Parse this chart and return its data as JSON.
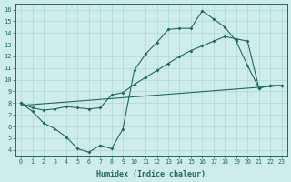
{
  "xlabel": "Humidex (Indice chaleur)",
  "bg_color": "#ceecea",
  "line_color": "#1e6b5e",
  "grid_color": "#aed8d4",
  "xlim_min": -0.5,
  "xlim_max": 23.5,
  "ylim_min": 3.5,
  "ylim_max": 16.5,
  "yticks": [
    4,
    5,
    6,
    7,
    8,
    9,
    10,
    11,
    12,
    13,
    14,
    15,
    16
  ],
  "xticks": [
    0,
    1,
    2,
    3,
    4,
    5,
    6,
    7,
    8,
    9,
    10,
    11,
    12,
    13,
    14,
    15,
    16,
    17,
    18,
    19,
    20,
    21,
    22,
    23
  ],
  "line1_x": [
    0,
    1,
    2,
    3,
    4,
    5,
    6,
    7,
    8,
    9,
    10,
    11,
    12,
    13,
    14,
    15,
    16,
    17,
    18,
    19,
    20,
    21,
    22,
    23
  ],
  "line1_y": [
    8.0,
    7.3,
    6.3,
    5.8,
    5.1,
    4.1,
    3.8,
    4.4,
    4.1,
    5.8,
    10.8,
    12.2,
    13.2,
    14.3,
    14.4,
    14.4,
    15.9,
    15.2,
    14.5,
    13.3,
    11.2,
    9.3,
    9.5,
    9.5
  ],
  "line2_x": [
    0,
    1,
    2,
    3,
    4,
    5,
    6,
    7,
    8,
    9,
    10,
    11,
    12,
    13,
    14,
    15,
    16,
    17,
    18,
    19,
    20,
    21,
    22,
    23
  ],
  "line2_y": [
    8.0,
    7.6,
    7.4,
    7.5,
    7.7,
    7.6,
    7.5,
    7.6,
    8.7,
    8.9,
    9.6,
    10.2,
    10.8,
    11.4,
    12.0,
    12.5,
    12.9,
    13.3,
    13.7,
    13.5,
    13.3,
    9.3,
    9.5,
    9.5
  ],
  "line3_x": [
    0,
    23
  ],
  "line3_y": [
    7.8,
    9.5
  ]
}
